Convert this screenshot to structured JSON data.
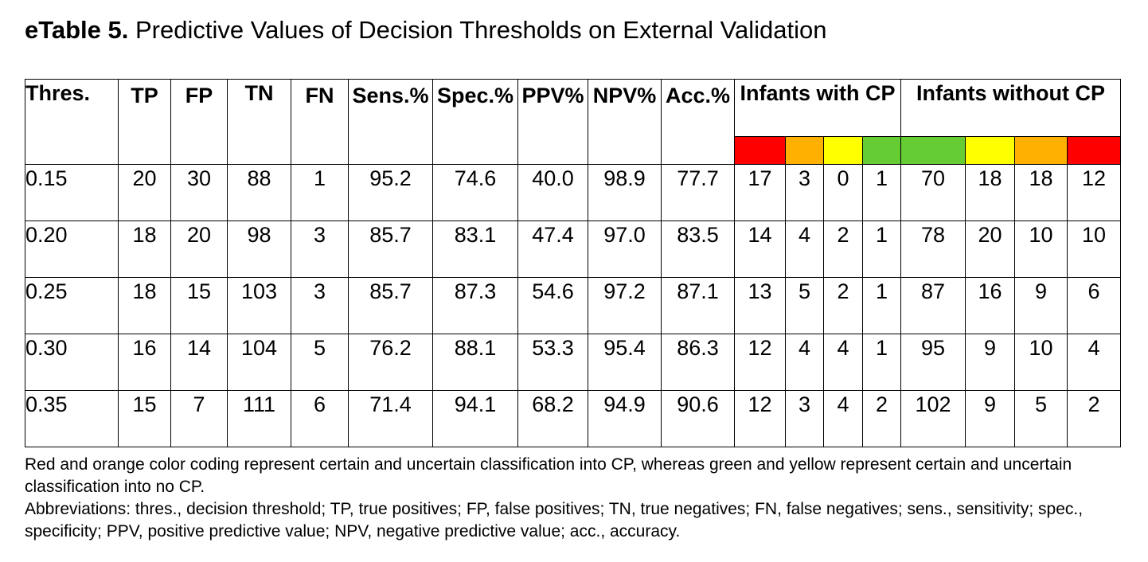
{
  "title": {
    "label": "eTable 5.",
    "text": "Predictive Values of Decision Thresholds on External Validation"
  },
  "table": {
    "headers": {
      "thres": "Thres.",
      "tp": "TP",
      "fp": "FP",
      "tn": "TN",
      "fn": "FN",
      "sens": "Sens.%",
      "spec": "Spec.%",
      "ppv": "PPV%",
      "npv": "NPV%",
      "acc": "Acc.%",
      "with_cp": "Infants with CP",
      "without_cp": "Infants without CP"
    },
    "color_codes": {
      "with_cp": [
        "#ff0000",
        "#ffb000",
        "#ffff00",
        "#66cc33"
      ],
      "without_cp": [
        "#66cc33",
        "#ffff00",
        "#ffb000",
        "#ff0000"
      ]
    },
    "rows": [
      {
        "thres": "0.15",
        "tp": "20",
        "fp": "30",
        "tn": "88",
        "fn": "1",
        "sens": "95.2",
        "spec": "74.6",
        "ppv": "40.0",
        "npv": "98.9",
        "acc": "77.7",
        "with_cp": [
          "17",
          "3",
          "0",
          "1"
        ],
        "without_cp": [
          "70",
          "18",
          "18",
          "12"
        ]
      },
      {
        "thres": "0.20",
        "tp": "18",
        "fp": "20",
        "tn": "98",
        "fn": "3",
        "sens": "85.7",
        "spec": "83.1",
        "ppv": "47.4",
        "npv": "97.0",
        "acc": "83.5",
        "with_cp": [
          "14",
          "4",
          "2",
          "1"
        ],
        "without_cp": [
          "78",
          "20",
          "10",
          "10"
        ]
      },
      {
        "thres": "0.25",
        "tp": "18",
        "fp": "15",
        "tn": "103",
        "fn": "3",
        "sens": "85.7",
        "spec": "87.3",
        "ppv": "54.6",
        "npv": "97.2",
        "acc": "87.1",
        "with_cp": [
          "13",
          "5",
          "2",
          "1"
        ],
        "without_cp": [
          "87",
          "16",
          "9",
          "6"
        ]
      },
      {
        "thres": "0.30",
        "tp": "16",
        "fp": "14",
        "tn": "104",
        "fn": "5",
        "sens": "76.2",
        "spec": "88.1",
        "ppv": "53.3",
        "npv": "95.4",
        "acc": "86.3",
        "with_cp": [
          "12",
          "4",
          "4",
          "1"
        ],
        "without_cp": [
          "95",
          "9",
          "10",
          "4"
        ]
      },
      {
        "thres": "0.35",
        "tp": "15",
        "fp": "7",
        "tn": "111",
        "fn": "6",
        "sens": "71.4",
        "spec": "94.1",
        "ppv": "68.2",
        "npv": "94.9",
        "acc": "90.6",
        "with_cp": [
          "12",
          "3",
          "4",
          "2"
        ],
        "without_cp": [
          "102",
          "9",
          "5",
          "2"
        ]
      }
    ]
  },
  "notes": {
    "color_note": "Red and orange color coding represent certain and uncertain classification into CP, whereas green and yellow represent certain and uncertain classification into no CP.",
    "abbreviations": "Abbreviations: thres., decision threshold; TP, true positives; FP, false positives; TN, true negatives; FN, false negatives; sens., sensitivity; spec., specificity; PPV, positive predictive value; NPV, negative predictive value; acc., accuracy."
  }
}
